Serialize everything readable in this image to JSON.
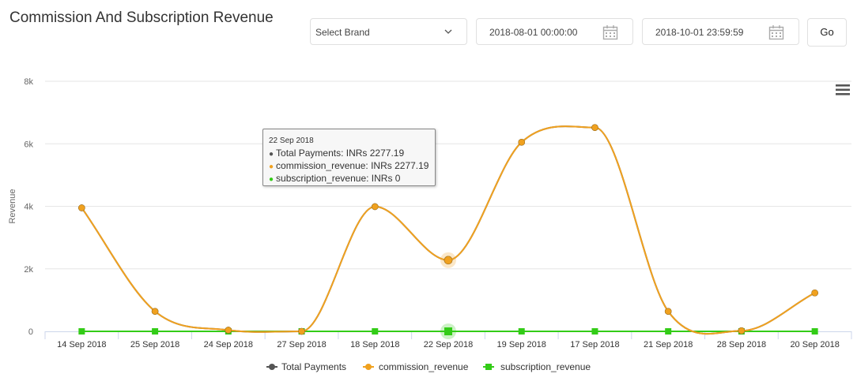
{
  "header": {
    "title": "Commission And Subscription Revenue",
    "brand_select": "Select Brand",
    "start_date": "2018-08-01 00:00:00",
    "end_date": "2018-10-01 23:59:59",
    "go_label": "Go"
  },
  "tooltip": {
    "date": "22 Sep 2018",
    "rows": [
      {
        "label": "Total Payments: INRs 2277.19",
        "color": "#555555"
      },
      {
        "label": "commission_revenue: INRs 2277.19",
        "color": "#f0a11f"
      },
      {
        "label": "subscription_revenue: INRs 0",
        "color": "#33cc17"
      }
    ]
  },
  "chart_data": {
    "type": "line",
    "ylabel": "Revenue",
    "ylim": [
      0,
      8000
    ],
    "yticks": [
      0,
      2000,
      4000,
      6000,
      8000
    ],
    "ytick_labels": [
      "0",
      "2k",
      "4k",
      "6k",
      "8k"
    ],
    "categories": [
      "14 Sep 2018",
      "25 Sep 2018",
      "24 Sep 2018",
      "27 Sep 2018",
      "18 Sep 2018",
      "22 Sep 2018",
      "19 Sep 2018",
      "17 Sep 2018",
      "21 Sep 2018",
      "28 Sep 2018",
      "20 Sep 2018"
    ],
    "series": [
      {
        "name": "Total Payments",
        "color": "#555555",
        "marker": "circle",
        "values": [
          3950,
          640,
          40,
          0,
          3990,
          2277.19,
          6050,
          6520,
          640,
          20,
          1230
        ]
      },
      {
        "name": "commission_revenue",
        "color": "#f0a11f",
        "marker": "circle",
        "values": [
          3950,
          640,
          40,
          0,
          3990,
          2277.19,
          6050,
          6520,
          640,
          20,
          1230
        ]
      },
      {
        "name": "subscription_revenue",
        "color": "#33cc17",
        "marker": "square",
        "values": [
          0,
          0,
          0,
          0,
          0,
          0,
          0,
          0,
          0,
          0,
          0
        ]
      }
    ],
    "highlighted_category": "22 Sep 2018",
    "legend_position": "bottom-center",
    "grid": true
  }
}
